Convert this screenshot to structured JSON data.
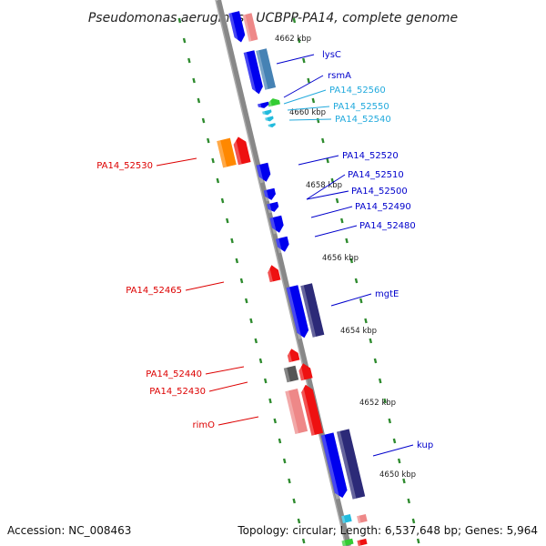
{
  "title": "Pseudomonas aeruginosa UCBPP-PA14, complete genome",
  "footer": {
    "accession": "Accession: NC_008463",
    "topology": "Topology: circular; Length: 6,537,648 bp; Genes: 5,964"
  },
  "colors": {
    "backbone": "#777777",
    "tick": "#2e8b2e",
    "blue": "#0000ee",
    "navy": "#2c2a78",
    "steel": "#4682b4",
    "cyan": "#22bbdd",
    "red": "#ee1111",
    "pink": "#ee8888",
    "orange": "#ff8800",
    "gray": "#555555",
    "green": "#33cc33"
  },
  "scale_labels": [
    "4662 kbp",
    "4660 kbp",
    "4658 kbp",
    "4656 kbp",
    "4654 kbp",
    "4652 kbp",
    "4650 kbp"
  ],
  "gene_labels": [
    {
      "text": "lysC",
      "color": "#0000cc"
    },
    {
      "text": "rsmA",
      "color": "#0000cc"
    },
    {
      "text": "PA14_52560",
      "color": "#22aadd"
    },
    {
      "text": "PA14_52550",
      "color": "#22aadd"
    },
    {
      "text": "PA14_52540",
      "color": "#22aadd"
    },
    {
      "text": "PA14_52520",
      "color": "#0000cc"
    },
    {
      "text": "PA14_52510",
      "color": "#0000cc"
    },
    {
      "text": "PA14_52500",
      "color": "#0000cc"
    },
    {
      "text": "PA14_52490",
      "color": "#0000cc"
    },
    {
      "text": "PA14_52480",
      "color": "#0000cc"
    },
    {
      "text": "mgtE",
      "color": "#0000cc"
    },
    {
      "text": "kup",
      "color": "#0000cc"
    },
    {
      "text": "PA14_52530",
      "color": "#dd0000"
    },
    {
      "text": "PA14_52465",
      "color": "#dd0000"
    },
    {
      "text": "PA14_52440",
      "color": "#dd0000"
    },
    {
      "text": "PA14_52430",
      "color": "#dd0000"
    },
    {
      "text": "rimO",
      "color": "#dd0000"
    }
  ]
}
